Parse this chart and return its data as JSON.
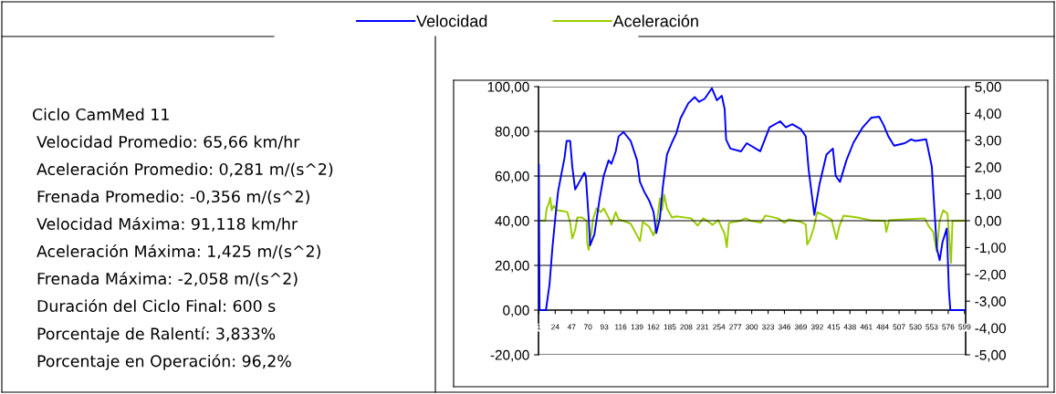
{
  "chart_data": {
    "type": "line",
    "annotations": [
      "Ciclo CamMed 11",
      "Velocidad Promedio: 65,66 km/hr",
      "Aceleración Promedio: 0,281 m/(s^2)",
      "Frenada Promedio: -0,356 m/(s^2)",
      "Velocidad Máxima: 91,118 km/hr",
      "Aceleración Máxima: 1,425 m/(s^2)",
      "Frenada Máxima: -2,058 m/(s^2)",
      "Duración del Ciclo Final: 600 s",
      "Porcentaje de Ralentí: 3,833%",
      "Porcentaje en Operación: 96,2%"
    ],
    "series": [
      {
        "name": "Velocidad",
        "color": "#0000ff",
        "x": [
          1,
          2,
          11,
          16,
          20,
          24,
          28,
          33,
          37,
          40,
          45,
          48,
          52,
          58,
          65,
          67,
          71,
          73,
          79,
          86,
          92,
          99,
          103,
          109,
          113,
          120,
          130,
          139,
          143,
          149,
          156,
          162,
          166,
          171,
          175,
          181,
          188,
          194,
          200,
          211,
          220,
          226,
          234,
          244,
          251,
          258,
          262,
          264,
          270,
          285,
          293,
          312,
          325,
          340,
          348,
          357,
          369,
          376,
          380,
          388,
          395,
          405,
          414,
          418,
          424,
          433,
          443,
          456,
          468,
          479,
          485,
          492,
          500,
          515,
          524,
          530,
          545,
          553,
          560,
          564,
          568,
          574,
          577,
          579,
          600
        ],
        "values": [
          65,
          0,
          0,
          11.5,
          27.7,
          41,
          53,
          61.5,
          68,
          75.7,
          75.7,
          64,
          54,
          57.4,
          61.5,
          60,
          41,
          29,
          33.8,
          49,
          60,
          67,
          65.5,
          71,
          77.7,
          79.7,
          75.7,
          67,
          57.4,
          53,
          49,
          44,
          34.5,
          41,
          54.7,
          69.6,
          75,
          79,
          85.8,
          92.6,
          95.3,
          93.2,
          94.6,
          99.3,
          93.9,
          95.9,
          90,
          76.4,
          72.3,
          71,
          74.7,
          71.1,
          81.8,
          84.5,
          81.8,
          83.2,
          81,
          77.7,
          62.8,
          42.6,
          56,
          69.6,
          72.3,
          60,
          57.4,
          67,
          75,
          81.8,
          86.1,
          86.5,
          83,
          77.7,
          73.6,
          74.7,
          76.4,
          75.7,
          76.4,
          64.2,
          27.7,
          22.3,
          30.4,
          36.5,
          8.8,
          0,
          0
        ]
      },
      {
        "name": "Aceleración",
        "color": "#99cc00",
        "axis": "y2",
        "x": [
          1,
          10,
          12,
          15,
          17,
          19,
          22,
          26,
          35,
          41,
          45,
          48,
          52,
          55,
          62,
          68,
          69,
          71,
          75,
          77,
          82,
          88,
          92,
          99,
          103,
          109,
          113,
          120,
          130,
          139,
          143,
          147,
          156,
          162,
          166,
          171,
          174,
          177,
          181,
          188,
          194,
          215,
          224,
          232,
          245,
          253,
          262,
          265,
          268,
          283,
          291,
          300,
          313,
          319,
          337,
          346,
          352,
          370,
          376,
          378,
          382,
          387,
          392,
          402,
          412,
          419,
          423,
          429,
          449,
          466,
          487,
          489,
          493,
          517,
          543,
          549,
          555,
          560,
          564,
          569,
          575,
          579,
          580,
          582,
          600
        ],
        "values": [
          0,
          0,
          0.46,
          0.65,
          0.86,
          0.39,
          0.56,
          0.39,
          0.36,
          0.32,
          -0.08,
          -0.66,
          -0.35,
          0.12,
          0.12,
          -0.01,
          -0.82,
          -1.09,
          -0.42,
          0.05,
          0.46,
          0.32,
          0.46,
          0.12,
          -0.15,
          0.32,
          0.05,
          -0.01,
          -0.11,
          -0.55,
          -0.76,
          -0.05,
          -0.22,
          -0.55,
          -0.22,
          0.83,
          0.39,
          0.97,
          0.46,
          0.12,
          0.16,
          0.09,
          -0.18,
          0.09,
          -0.15,
          0.02,
          -0.49,
          -0.99,
          -0.08,
          -0.01,
          0.09,
          -0.01,
          -0.07,
          0.19,
          0.09,
          -0.08,
          0.05,
          -0.05,
          -0.15,
          -0.89,
          -0.69,
          -0.28,
          0.32,
          0.19,
          0.05,
          -0.69,
          -0.22,
          0.19,
          0.12,
          0.02,
          -0.01,
          -0.42,
          0.02,
          0.05,
          0.09,
          -0.22,
          -0.42,
          -1.16,
          -0.01,
          0.39,
          0.26,
          -1.23,
          -1.57,
          -0.01,
          0
        ]
      }
    ],
    "xlim": [
      0.5,
      600.5
    ],
    "xticks": [
      1,
      24,
      47,
      70,
      93,
      116,
      139,
      162,
      185,
      208,
      231,
      254,
      277,
      300,
      323,
      346,
      369,
      392,
      415,
      438,
      461,
      484,
      507,
      530,
      553,
      576,
      599
    ],
    "ylim": [
      -20,
      100
    ],
    "yticks": [
      {
        "value": -20,
        "label": "-20,00"
      },
      {
        "value": 0,
        "label": "0,00"
      },
      {
        "value": 20,
        "label": "20,00"
      },
      {
        "value": 40,
        "label": "40,00"
      },
      {
        "value": 60,
        "label": "60,00"
      },
      {
        "value": 80,
        "label": "80,00"
      },
      {
        "value": 100,
        "label": "100,00"
      }
    ],
    "y2lim": [
      -5,
      5
    ],
    "y2ticks": [
      {
        "value": -5,
        "label": "-5,00"
      },
      {
        "value": -4,
        "label": "-4,00"
      },
      {
        "value": -3,
        "label": "-3,00"
      },
      {
        "value": -2,
        "label": "-2,00"
      },
      {
        "value": -1,
        "label": "-1,00"
      },
      {
        "value": 0,
        "label": "0,00"
      },
      {
        "value": 1,
        "label": "1,00"
      },
      {
        "value": 2,
        "label": "2,00"
      },
      {
        "value": 3,
        "label": "3,00"
      },
      {
        "value": 4,
        "label": "4,00"
      },
      {
        "value": 5,
        "label": "5,00"
      }
    ],
    "grid": "y",
    "legend": "top",
    "marker": "none",
    "line_style": "solid"
  }
}
